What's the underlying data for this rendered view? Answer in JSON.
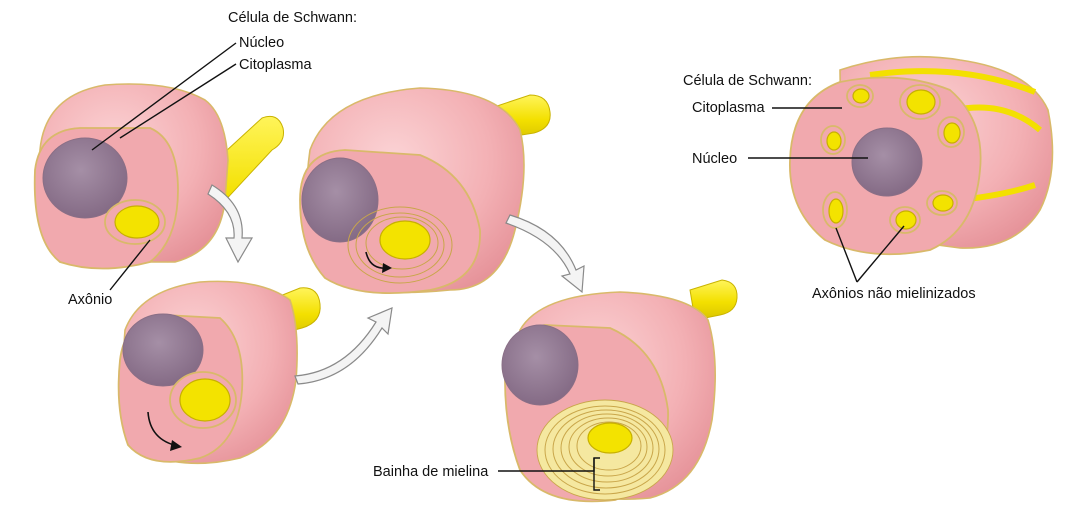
{
  "labels": {
    "schwann_title_left": "Célula de Schwann:",
    "nucleus_left": "Núcleo",
    "cytoplasm_left": "Citoplasma",
    "axon": "Axônio",
    "myelin_sheath": "Bainha de mielina",
    "schwann_title_right": "Célula de Schwann:",
    "cytoplasm_right": "Citoplasma",
    "nucleus_right": "Núcleo",
    "unmyelinated_axons": "Axônios não mielinizados"
  },
  "colors": {
    "cell_pink": "#f4b3b6",
    "cell_face": "#f1a9ae",
    "nucleus": "#9b7f98",
    "axon_yellow": "#f3e300",
    "myelin": "#f5e8a0",
    "outline": "#d9b96a"
  }
}
